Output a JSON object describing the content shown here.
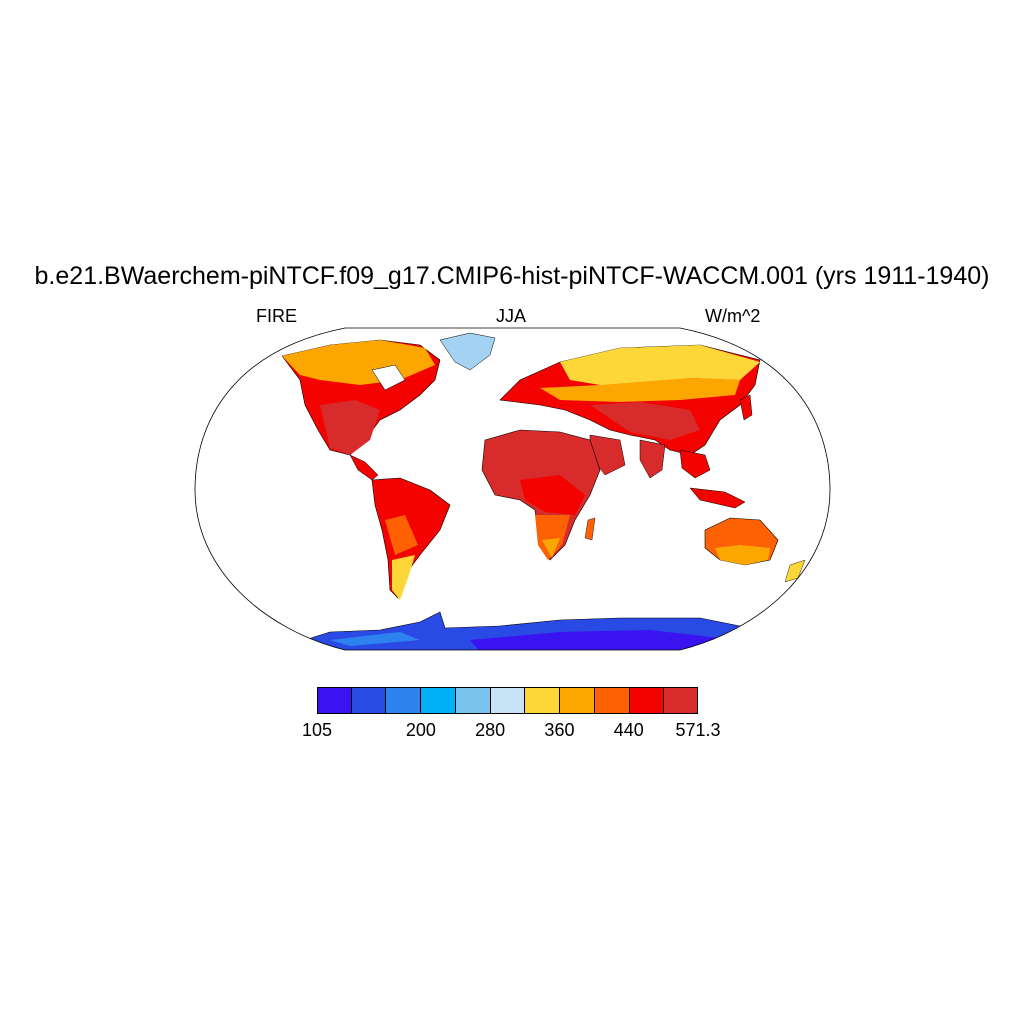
{
  "header": {
    "title": "b.e21.BWaerchem-piNTCF.f09_g17.CMIP6-hist-piNTCF-WACCM.001 (yrs 1911-1940)",
    "left_label": "FIRE",
    "center_label": "JJA",
    "right_label": "W/m^2"
  },
  "colorbar": {
    "colors": [
      "#3a14f0",
      "#2a4ae6",
      "#2e82f0",
      "#00b2f5",
      "#7ac4ef",
      "#c6e4f6",
      "#fcd737",
      "#fca602",
      "#fd6103",
      "#f40200",
      "#d82b2b"
    ],
    "tick_labels": [
      "105",
      "200",
      "280",
      "360",
      "440",
      "571.3"
    ],
    "tick_boundary_index": [
      0,
      3,
      5,
      7,
      9,
      11
    ]
  },
  "map": {
    "projection": "robinson",
    "land_color_scale": [
      "#fcd737",
      "#fca602",
      "#fd6103",
      "#f40200",
      "#d82b2b"
    ],
    "antarctica_colors": [
      "#3a14f0",
      "#2a4ae6",
      "#2e82f0"
    ],
    "greenland_color": "#a3d2f2"
  }
}
